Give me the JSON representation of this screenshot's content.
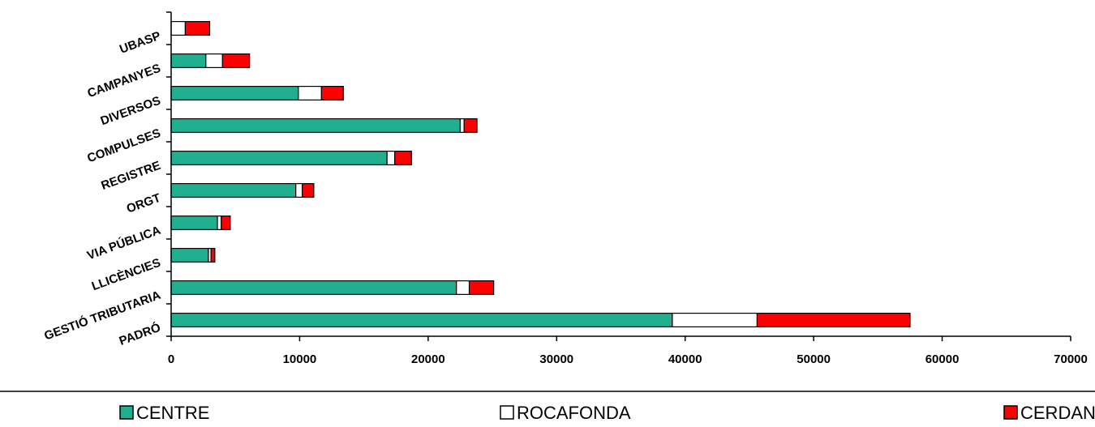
{
  "chart_data": {
    "type": "bar",
    "orientation": "horizontal",
    "stacked": true,
    "categories": [
      "PADRÓ",
      "GESTIÓ TRIBUTARIA",
      "LLICÈNCIES",
      "VIA PÚBLICA",
      "ORGT",
      "REGISTRE",
      "COMPULSES",
      "DIVERSOS",
      "CAMPANYES",
      "UBASP"
    ],
    "series": [
      {
        "name": "CENTRE",
        "color": "#20b090",
        "values": [
          39000,
          22200,
          2900,
          3600,
          9700,
          16800,
          22500,
          9900,
          2700,
          0
        ]
      },
      {
        "name": "ROCAFONDA",
        "color": "#ffffff",
        "values": [
          6600,
          1000,
          200,
          300,
          500,
          600,
          300,
          1800,
          1300,
          1100
        ]
      },
      {
        "name": "CERDANYOLA",
        "color": "#ff0000",
        "values": [
          11900,
          1900,
          300,
          700,
          900,
          1300,
          1000,
          1700,
          2100,
          1900
        ]
      }
    ],
    "xlim": [
      0,
      70000
    ],
    "xticks": [
      0,
      10000,
      20000,
      30000,
      40000,
      50000,
      60000,
      70000
    ],
    "title": "",
    "xlabel": "",
    "ylabel": "",
    "grid": false,
    "legend_position": "bottom"
  }
}
